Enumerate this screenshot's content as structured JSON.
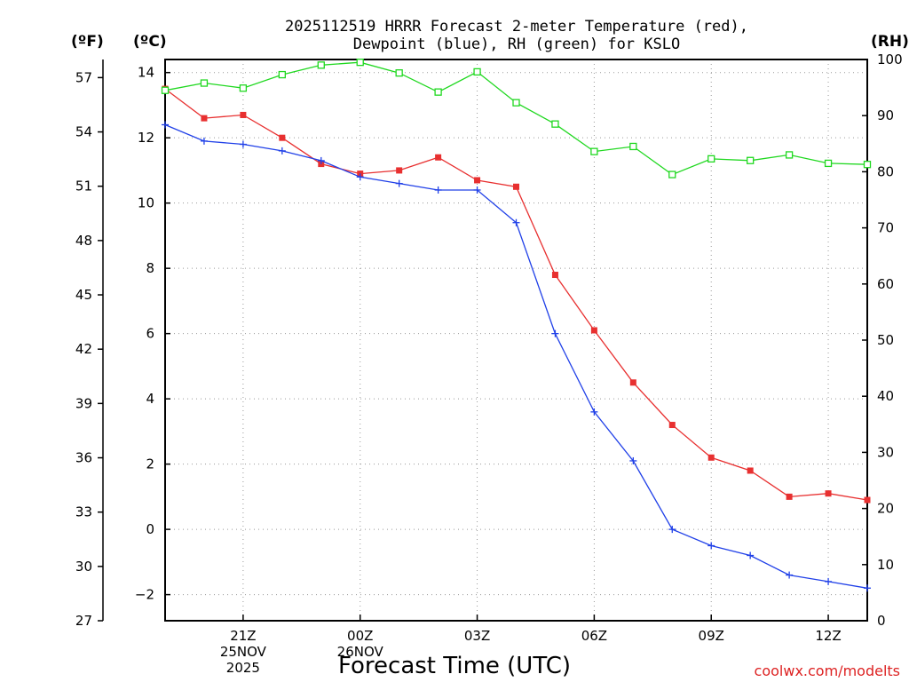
{
  "title": {
    "line1": "2025112519 HRRR Forecast 2-meter Temperature (red),",
    "line2": "Dewpoint (blue), RH (green) for KSLO"
  },
  "units": {
    "fahrenheit": "(ºF)",
    "celsius": "(ºC)",
    "rh": "(RH)"
  },
  "xlabel": "Forecast Time (UTC)",
  "watermark": "coolwx.com/modelts",
  "colors": {
    "temperature": "#e83030",
    "dewpoint": "#2040e8",
    "rh": "#20d820"
  },
  "chart_data": {
    "type": "line",
    "title": "2025112519 HRRR Forecast 2-meter Temperature (red), Dewpoint (blue), RH (green) for KSLO",
    "x": [
      19,
      20,
      21,
      22,
      23,
      24,
      25,
      26,
      27,
      28,
      29,
      30,
      31,
      32,
      33,
      34,
      35,
      36,
      37
    ],
    "x_units": "hours UTC from 00Z 25NOV2025",
    "xlim": [
      19,
      37
    ],
    "x_ticks": [
      {
        "x": 21,
        "lines": [
          "21Z",
          "25NOV",
          "2025"
        ]
      },
      {
        "x": 24,
        "lines": [
          "00Z",
          "26NOV"
        ]
      },
      {
        "x": 27,
        "lines": [
          "03Z"
        ]
      },
      {
        "x": 30,
        "lines": [
          "06Z"
        ]
      },
      {
        "x": 33,
        "lines": [
          "09Z"
        ]
      },
      {
        "x": 36,
        "lines": [
          "12Z"
        ]
      }
    ],
    "y_left_c": {
      "label": "(ºC)",
      "ylim": [
        -2.8,
        14.4
      ],
      "ticks": [
        -2,
        0,
        2,
        4,
        6,
        8,
        10,
        12,
        14
      ]
    },
    "y_left_f": {
      "label": "(ºF)",
      "ylim": [
        27,
        58
      ],
      "ticks": [
        27,
        30,
        33,
        36,
        39,
        42,
        45,
        48,
        51,
        54,
        57
      ]
    },
    "y_right": {
      "label": "(RH)",
      "ylim": [
        0,
        100
      ],
      "ticks": [
        0,
        10,
        20,
        30,
        40,
        50,
        60,
        70,
        80,
        90,
        100
      ]
    },
    "series": [
      {
        "name": "Temperature",
        "axis": "celsius",
        "color": "#e83030",
        "marker": "filled-square",
        "values": [
          13.5,
          12.6,
          12.7,
          12.0,
          11.2,
          10.9,
          11.0,
          11.4,
          10.7,
          10.5,
          7.8,
          6.1,
          4.5,
          3.2,
          2.2,
          1.8,
          1.0,
          1.1,
          0.9
        ]
      },
      {
        "name": "Dewpoint",
        "axis": "celsius",
        "color": "#2040e8",
        "marker": "plus",
        "values": [
          12.4,
          11.9,
          11.8,
          11.6,
          11.3,
          10.8,
          10.6,
          10.4,
          10.4,
          9.4,
          6.0,
          3.6,
          2.1,
          0.0,
          -0.5,
          -0.8,
          -1.4,
          -1.6,
          -1.8
        ]
      },
      {
        "name": "RH",
        "axis": "rh",
        "color": "#20d820",
        "marker": "open-square",
        "values": [
          94.5,
          95.8,
          94.9,
          97.3,
          99.0,
          99.5,
          97.6,
          94.2,
          97.8,
          92.3,
          88.5,
          83.6,
          84.5,
          79.5,
          82.3,
          82.0,
          83.0,
          81.5,
          81.3
        ]
      }
    ]
  }
}
